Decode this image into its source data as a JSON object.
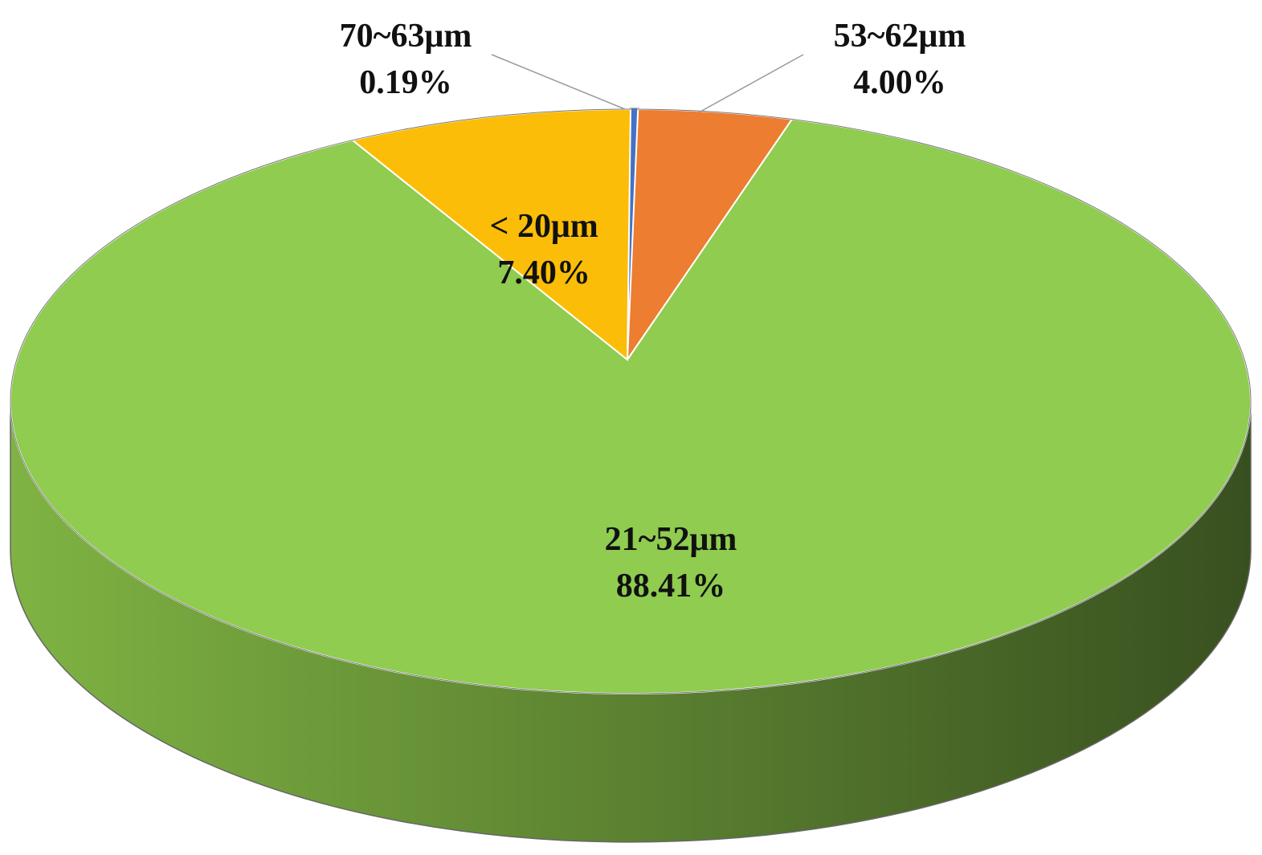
{
  "chart_data": {
    "type": "pie",
    "style": "3d",
    "start": "top",
    "direction": "clockwise",
    "slices": [
      {
        "label": "70~63μm",
        "value": 0.19,
        "value_label": "0.19%",
        "color": "#4472c4",
        "label_position": "outside-leader"
      },
      {
        "label": "53~62μm",
        "value": 4.0,
        "value_label": "4.00%",
        "color": "#ed7d31",
        "label_position": "outside-leader"
      },
      {
        "label": "21~52μm",
        "value": 88.41,
        "value_label": "88.41%",
        "color": "#8fcc4f",
        "label_position": "inside"
      },
      {
        "label": "< 20μm",
        "value": 7.4,
        "value_label": "7.40%",
        "color": "#fbbd07",
        "label_position": "inside"
      }
    ],
    "side_gradient": [
      "#7fb343",
      "#38501f"
    ],
    "legend": "none"
  }
}
